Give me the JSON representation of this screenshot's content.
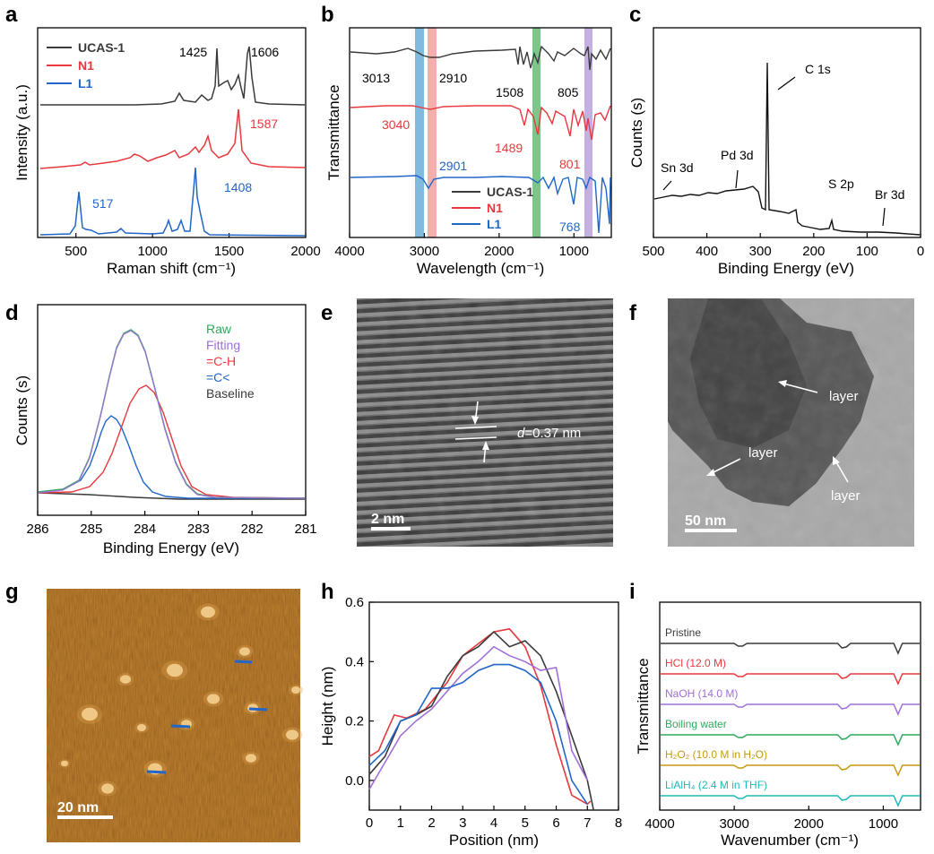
{
  "colors": {
    "black": "#3a3a3a",
    "red": "#e8383d",
    "blue": "#2166c8",
    "green": "#2eaa5c",
    "purple": "#a070d8",
    "gold": "#c79a10",
    "cyan": "#20b8b8",
    "teal_band": "#6aaed6",
    "pink_band": "#f08c8c",
    "green_band": "#5ab86a",
    "lilac_band": "#b49cd8"
  },
  "panels": {
    "a": {
      "letter": "a",
      "xlabel": "Raman shift (cm⁻¹)",
      "ylabel": "Intensity (a.u.)",
      "xticks": [
        "500",
        "1000",
        "1500",
        "2000"
      ],
      "legend": [
        {
          "name": "UCAS-1",
          "color": "#3a3a3a"
        },
        {
          "name": "N1",
          "color": "#e8383d"
        },
        {
          "name": "L1",
          "color": "#2166c8"
        }
      ],
      "annotations": [
        {
          "text": "1425",
          "color": "#222"
        },
        {
          "text": "1606",
          "color": "#222"
        },
        {
          "text": "1587",
          "color": "#e8383d"
        },
        {
          "text": "517",
          "color": "#2166c8"
        },
        {
          "text": "1408",
          "color": "#2166c8"
        }
      ]
    },
    "b": {
      "letter": "b",
      "xlabel": "Wavelength (cm⁻¹)",
      "ylabel": "Transmittance",
      "xticks": [
        "4000",
        "3000",
        "2000",
        "1000"
      ],
      "legend": [
        {
          "name": "UCAS-1",
          "color": "#3a3a3a"
        },
        {
          "name": "N1",
          "color": "#e8383d"
        },
        {
          "name": "L1",
          "color": "#2166c8"
        }
      ],
      "annotations": [
        {
          "text": "3013",
          "color": "#222"
        },
        {
          "text": "2910",
          "color": "#222"
        },
        {
          "text": "1508",
          "color": "#222"
        },
        {
          "text": "805",
          "color": "#222"
        },
        {
          "text": "3040",
          "color": "#e8383d"
        },
        {
          "text": "1489",
          "color": "#e8383d"
        },
        {
          "text": "801",
          "color": "#e8383d"
        },
        {
          "text": "2901",
          "color": "#2166c8"
        },
        {
          "text": "768",
          "color": "#2166c8"
        }
      ]
    },
    "c": {
      "letter": "c",
      "xlabel": "Binding Energy (eV)",
      "ylabel": "Counts (s)",
      "xticks": [
        "500",
        "400",
        "300",
        "200",
        "100",
        "0"
      ],
      "annotations": [
        "C 1s",
        "Pd 3d",
        "Sn 3d",
        "S 2p",
        "Br 3d"
      ]
    },
    "d": {
      "letter": "d",
      "xlabel": "Binding Energy (eV)",
      "ylabel": "Counts (s)",
      "xticks": [
        "286",
        "285",
        "284",
        "283",
        "282",
        "281"
      ],
      "legend": [
        {
          "name": "Raw",
          "color": "#2eaa5c"
        },
        {
          "name": "Fitting",
          "color": "#a070d8"
        },
        {
          "name": "=C-H",
          "color": "#e8383d"
        },
        {
          "name": "=C<",
          "color": "#2166c8"
        },
        {
          "name": "Baseline",
          "color": "#3a3a3a"
        }
      ]
    },
    "e": {
      "letter": "e",
      "d_label": "d",
      "d_value": "=0.37 nm",
      "scale": "2 nm"
    },
    "f": {
      "letter": "f",
      "labels": [
        "layer",
        "layer",
        "layer"
      ],
      "scale": "50 nm"
    },
    "g": {
      "letter": "g",
      "scale": "20 nm"
    },
    "h": {
      "letter": "h",
      "xlabel": "Position (nm)",
      "ylabel": "Height (nm)",
      "xticks": [
        "0",
        "1",
        "2",
        "3",
        "4",
        "5",
        "6",
        "7",
        "8"
      ],
      "yticks": [
        "0.0",
        "0.2",
        "0.4",
        "0.6"
      ]
    },
    "i": {
      "letter": "i",
      "xlabel": "Wavenumber (cm⁻¹)",
      "ylabel": "Transmittance",
      "xticks": [
        "4000",
        "3000",
        "2000",
        "1000"
      ],
      "conditions": [
        {
          "label": "Pristine",
          "color": "#3a3a3a",
          "sub": ""
        },
        {
          "label": "HCl (12.0 M)",
          "color": "#e8383d",
          "sub": ""
        },
        {
          "label": "NaOH (14.0 M)",
          "color": "#a070d8",
          "sub": ""
        },
        {
          "label": "Boiling water",
          "color": "#2eaa5c",
          "sub": ""
        },
        {
          "label": "H₂O₂ (10.0 M in H₂O)",
          "color": "#c79a10",
          "sub": ""
        },
        {
          "label": "LiAlH₄ (2.4 M in THF)",
          "color": "#20b8b8",
          "sub": ""
        }
      ]
    }
  },
  "chart_data": [
    {
      "panel": "h",
      "type": "line",
      "xlabel": "Position (nm)",
      "ylabel": "Height (nm)",
      "xlim": [
        0,
        8
      ],
      "ylim": [
        -0.1,
        0.6
      ],
      "series": [
        {
          "color": "#e8383d",
          "x": [
            0,
            0.3,
            0.5,
            0.8,
            1.2,
            1.8,
            2.5,
            3,
            3.5,
            4,
            4.5,
            5,
            5.5,
            6,
            6.5,
            7,
            7.1
          ],
          "y": [
            0.08,
            0.1,
            0.15,
            0.22,
            0.21,
            0.24,
            0.33,
            0.42,
            0.46,
            0.5,
            0.51,
            0.45,
            0.32,
            0.12,
            -0.05,
            -0.08,
            -0.07
          ]
        },
        {
          "color": "#3a3a3a",
          "x": [
            0,
            0.5,
            1,
            1.5,
            2,
            2.5,
            3,
            3.5,
            4,
            4.5,
            5,
            5.5,
            6,
            6.5,
            7,
            7.2
          ],
          "y": [
            0.02,
            0.08,
            0.2,
            0.22,
            0.25,
            0.35,
            0.42,
            0.45,
            0.5,
            0.45,
            0.47,
            0.42,
            0.3,
            0.15,
            0.0,
            -0.1
          ]
        },
        {
          "color": "#a070d8",
          "x": [
            0,
            0.5,
            1,
            1.5,
            2,
            2.5,
            3,
            3.5,
            4,
            4.5,
            5,
            5.5,
            6,
            6.5,
            7
          ],
          "y": [
            -0.03,
            0.06,
            0.15,
            0.2,
            0.24,
            0.3,
            0.36,
            0.4,
            0.45,
            0.42,
            0.4,
            0.37,
            0.38,
            0.1,
            0.0
          ]
        },
        {
          "color": "#2166c8",
          "x": [
            0,
            0.5,
            1,
            1.5,
            2,
            2.5,
            3,
            3.5,
            4,
            4.5,
            5,
            5.5,
            6,
            6.5,
            7
          ],
          "y": [
            0.05,
            0.1,
            0.2,
            0.22,
            0.31,
            0.31,
            0.33,
            0.37,
            0.39,
            0.39,
            0.37,
            0.33,
            0.2,
            0.0,
            -0.08
          ]
        }
      ]
    }
  ]
}
